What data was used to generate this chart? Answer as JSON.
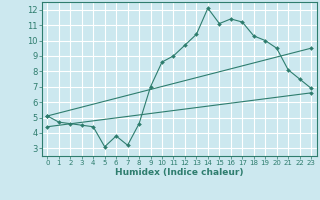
{
  "title": "",
  "xlabel": "Humidex (Indice chaleur)",
  "bg_color": "#cce8ef",
  "grid_color": "#ffffff",
  "line_color": "#2e7d6e",
  "xmin": -0.5,
  "xmax": 23.5,
  "ymin": 2.5,
  "ymax": 12.5,
  "line1_x": [
    0,
    1,
    2,
    3,
    4,
    5,
    6,
    7,
    8,
    9,
    10,
    11,
    12,
    13,
    14,
    15,
    16,
    17,
    18,
    19,
    20,
    21,
    22,
    23
  ],
  "line1_y": [
    5.1,
    4.7,
    4.6,
    4.5,
    4.4,
    3.1,
    3.8,
    3.2,
    4.6,
    7.0,
    8.6,
    9.0,
    9.7,
    10.4,
    12.1,
    11.1,
    11.4,
    11.2,
    10.3,
    10.0,
    9.5,
    8.1,
    7.5,
    6.9
  ],
  "line2_x": [
    0,
    23
  ],
  "line2_y": [
    5.1,
    9.5
  ],
  "line3_x": [
    0,
    23
  ],
  "line3_y": [
    4.4,
    6.6
  ],
  "xticks": [
    0,
    1,
    2,
    3,
    4,
    5,
    6,
    7,
    8,
    9,
    10,
    11,
    12,
    13,
    14,
    15,
    16,
    17,
    18,
    19,
    20,
    21,
    22,
    23
  ],
  "yticks": [
    3,
    4,
    5,
    6,
    7,
    8,
    9,
    10,
    11,
    12
  ]
}
